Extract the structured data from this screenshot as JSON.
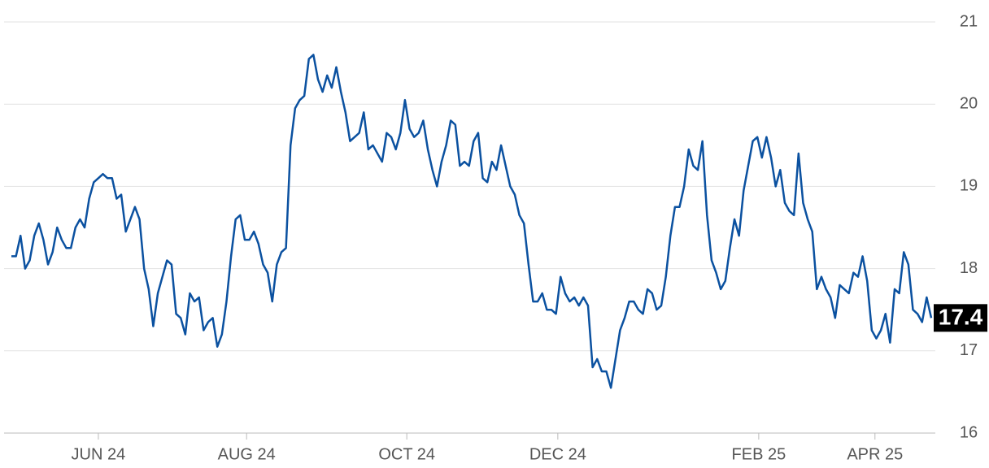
{
  "chart_data": {
    "type": "line",
    "series": [
      {
        "color": "#0b51a0",
        "values": [
          18.15,
          18.15,
          18.4,
          18.0,
          18.1,
          18.4,
          18.55,
          18.35,
          18.05,
          18.2,
          18.5,
          18.35,
          18.25,
          18.25,
          18.5,
          18.6,
          18.5,
          18.85,
          19.05,
          19.1,
          19.15,
          19.1,
          19.1,
          18.85,
          18.9,
          18.45,
          18.6,
          18.75,
          18.6,
          18.0,
          17.75,
          17.3,
          17.7,
          17.9,
          18.1,
          18.05,
          17.45,
          17.4,
          17.2,
          17.7,
          17.6,
          17.65,
          17.25,
          17.35,
          17.4,
          17.05,
          17.2,
          17.6,
          18.15,
          18.6,
          18.65,
          18.35,
          18.35,
          18.45,
          18.3,
          18.05,
          17.95,
          17.6,
          18.05,
          18.2,
          18.25,
          19.5,
          19.95,
          20.05,
          20.1,
          20.55,
          20.6,
          20.3,
          20.15,
          20.35,
          20.2,
          20.45,
          20.15,
          19.9,
          19.55,
          19.6,
          19.65,
          19.9,
          19.45,
          19.5,
          19.4,
          19.3,
          19.65,
          19.6,
          19.45,
          19.65,
          20.05,
          19.7,
          19.6,
          19.65,
          19.8,
          19.45,
          19.2,
          19.0,
          19.3,
          19.5,
          19.8,
          19.75,
          19.25,
          19.3,
          19.25,
          19.55,
          19.65,
          19.1,
          19.05,
          19.3,
          19.2,
          19.5,
          19.25,
          19.0,
          18.9,
          18.65,
          18.55,
          18.05,
          17.6,
          17.6,
          17.7,
          17.5,
          17.5,
          17.45,
          17.9,
          17.7,
          17.6,
          17.65,
          17.55,
          17.65,
          17.55,
          16.8,
          16.9,
          16.75,
          16.75,
          16.55,
          16.9,
          17.25,
          17.4,
          17.6,
          17.6,
          17.5,
          17.45,
          17.75,
          17.7,
          17.5,
          17.55,
          17.9,
          18.4,
          18.75,
          18.75,
          19.0,
          19.45,
          19.25,
          19.2,
          19.55,
          18.65,
          18.1,
          17.95,
          17.75,
          17.85,
          18.25,
          18.6,
          18.4,
          18.95,
          19.25,
          19.55,
          19.6,
          19.35,
          19.6,
          19.35,
          19.0,
          19.2,
          18.8,
          18.7,
          18.65,
          19.4,
          18.8,
          18.6,
          18.45,
          17.75,
          17.9,
          17.75,
          17.65,
          17.4,
          17.8,
          17.75,
          17.7,
          17.95,
          17.9,
          18.15,
          17.85,
          17.25,
          17.15,
          17.25,
          17.45,
          17.1,
          17.75,
          17.7,
          18.2,
          18.05,
          17.5,
          17.45,
          17.35,
          17.65,
          17.4
        ]
      }
    ],
    "xlim": [
      0,
      201
    ],
    "xticks": [
      {
        "value": 19,
        "label": "JUN 24"
      },
      {
        "value": 51.4,
        "label": "AUG 24"
      },
      {
        "value": 86.4,
        "label": "OCT 24"
      },
      {
        "value": 119.4,
        "label": "DEC 24"
      },
      {
        "value": 163.3,
        "label": "FEB 25"
      },
      {
        "value": 188.7,
        "label": "APR 25"
      }
    ],
    "ylim": [
      16,
      21
    ],
    "yticks": [
      16,
      17,
      18,
      19,
      20,
      21
    ],
    "grid": true
  }
}
